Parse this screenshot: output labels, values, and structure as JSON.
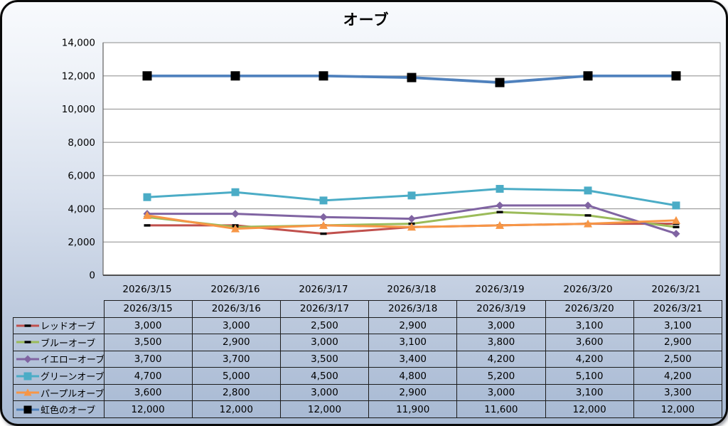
{
  "chart_data": {
    "type": "line",
    "title": "オーブ",
    "categories": [
      "2026/3/15",
      "2026/3/16",
      "2026/3/17",
      "2026/3/18",
      "2026/3/19",
      "2026/3/20",
      "2026/3/21"
    ],
    "series": [
      {
        "name": "レッドオーブ",
        "color": "#C0504D",
        "line_width": 3,
        "marker": {
          "shape": "dash",
          "color": "#000000",
          "size": 9
        },
        "values": [
          3000,
          3000,
          2500,
          2900,
          3000,
          3100,
          3100
        ]
      },
      {
        "name": "ブルーオーブ",
        "color": "#9BBB59",
        "line_width": 3,
        "marker": {
          "shape": "dash",
          "color": "#000000",
          "size": 9
        },
        "values": [
          3500,
          2900,
          3000,
          3100,
          3800,
          3600,
          2900
        ]
      },
      {
        "name": "イエローオーブ",
        "color": "#8064A2",
        "line_width": 3,
        "marker": {
          "shape": "diamond",
          "color": "#8064A2",
          "size": 11
        },
        "values": [
          3700,
          3700,
          3500,
          3400,
          4200,
          4200,
          2500
        ]
      },
      {
        "name": "グリーンオーブ",
        "color": "#4BACC6",
        "line_width": 3,
        "marker": {
          "shape": "square",
          "color": "#4BACC6",
          "size": 11
        },
        "values": [
          4700,
          5000,
          4500,
          4800,
          5200,
          5100,
          4200
        ]
      },
      {
        "name": "パープルオーブ",
        "color": "#F79646",
        "line_width": 3,
        "marker": {
          "shape": "triangle",
          "color": "#F79646",
          "size": 12
        },
        "values": [
          3600,
          2800,
          3000,
          2900,
          3000,
          3100,
          3300
        ]
      },
      {
        "name": "虹色のオーブ",
        "color": "#4F81BD",
        "line_width": 3.8,
        "marker": {
          "shape": "square",
          "color": "#000000",
          "size": 13
        },
        "values": [
          12000,
          12000,
          12000,
          11900,
          11600,
          12000,
          12000
        ]
      }
    ],
    "ylim": [
      0,
      14000
    ],
    "ytick_step": 2000,
    "ytick_labels": [
      "0",
      "2,000",
      "4,000",
      "6,000",
      "8,000",
      "10,000",
      "12,000",
      "14,000"
    ],
    "xlabel": "",
    "ylabel": "",
    "grid": true,
    "legend_position": "data-table-left-column",
    "data_table_shown": true
  },
  "colors": {
    "plot_fill": "#ffffff",
    "plot_border": "#9a9a9a",
    "gridline": "#8c8c8c",
    "y_axis_line": "#6b6b6b",
    "x_axis_line": "#3c3c3c",
    "table_border": "#1c1c1c",
    "frame_border": "#0a0a0a",
    "text": "#000000",
    "background_top": "#f8fafd",
    "background_bottom": "#a7b9d3"
  }
}
